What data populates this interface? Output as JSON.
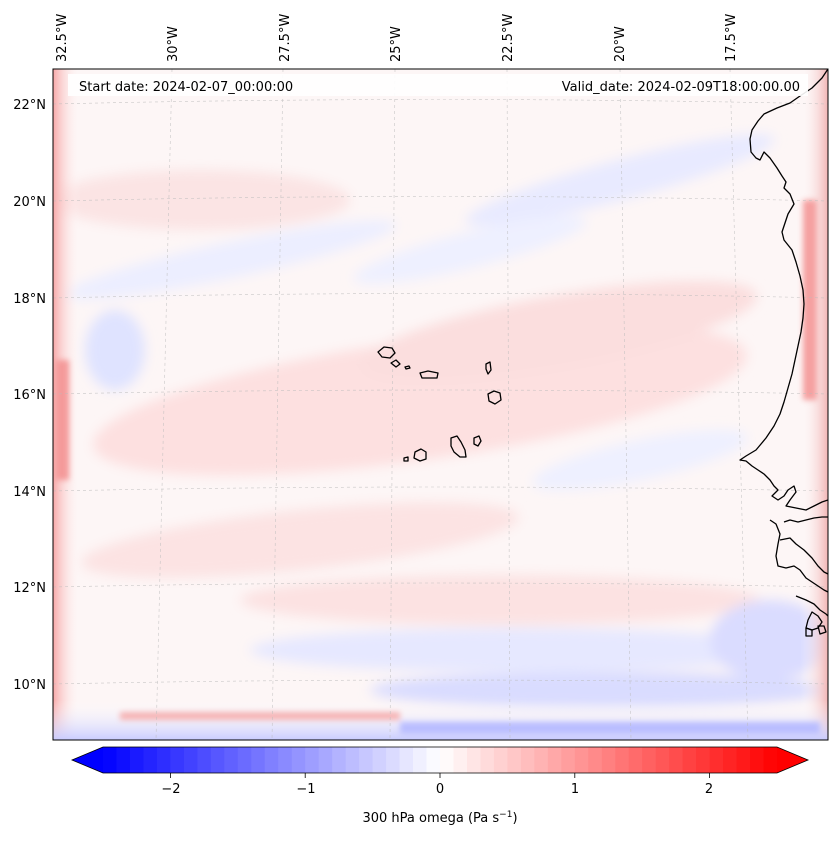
{
  "map": {
    "title_left": "Start date: 2024-02-07_00:00:00",
    "title_right": "Valid_date: 2024-02-09T18:00:00.00",
    "lon_labels": [
      "32.5°W",
      "30°W",
      "27.5°W",
      "25°W",
      "22.5°W",
      "20°W",
      "17.5°W"
    ],
    "lat_labels": [
      "22°N",
      "20°N",
      "18°N",
      "16°N",
      "14°N",
      "12°N",
      "10°N"
    ],
    "colorbar": {
      "ticks": [
        "−2",
        "−1",
        "0",
        "1",
        "2"
      ],
      "tick_values": [
        -2,
        -1,
        0,
        1,
        2
      ],
      "range": [
        -2.5,
        2.5
      ],
      "label_main": "300 hPa omega (Pa s",
      "label_exp": "−1",
      "label_close": ")",
      "colormap": "bwr",
      "low_color": "#0000ff",
      "mid_color": "#ffffff",
      "high_color": "#ff0000"
    },
    "features": {
      "islands": [
        "Santo Antão",
        "São Vicente",
        "Santa Luzia",
        "São Nicolau",
        "Sal",
        "Boa Vista",
        "Maio",
        "Santiago",
        "Fogo",
        "Brava"
      ],
      "coast": "West African coastline (Mauritania, Senegal, Gambia, Guinea-Bissau)"
    }
  }
}
